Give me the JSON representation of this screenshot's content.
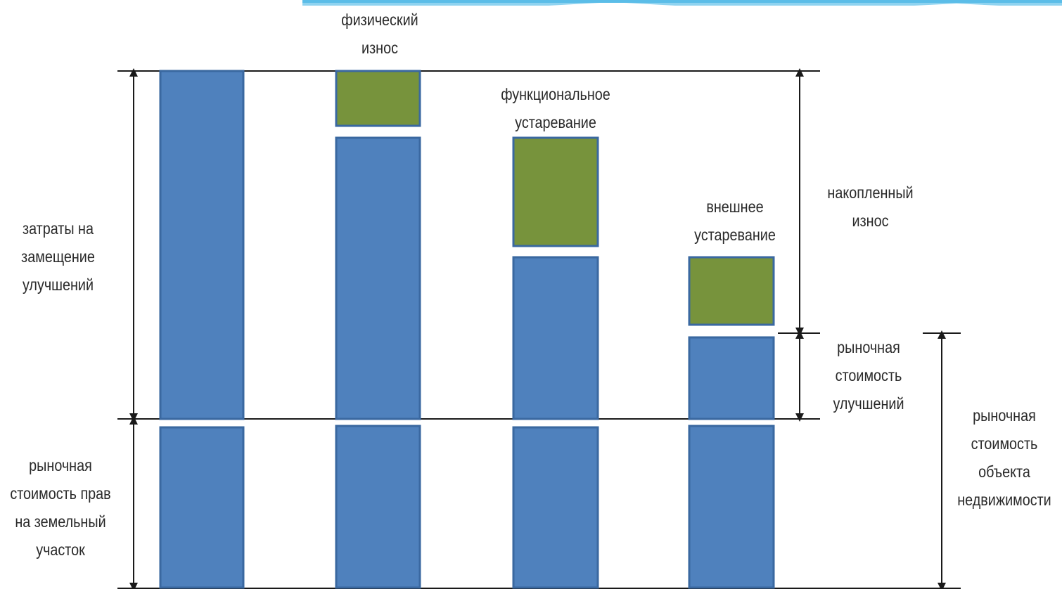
{
  "colors": {
    "bar": "#4f81bd",
    "bar_border": "#3a68a0",
    "depreciation": "#77933c",
    "line": "#1a1a1a",
    "top_band": "#8fd3f0"
  },
  "labels": {
    "replacement_cost": [
      "затраты на",
      "замещение",
      "улучшений"
    ],
    "land_value": [
      "рыночная",
      "стоимость прав",
      "на земельный",
      "участок"
    ],
    "physical_wear": [
      "физический",
      "износ"
    ],
    "functional_obsolescence": [
      "функциональное",
      "устаревание"
    ],
    "external_obsolescence": [
      "внешнее",
      "устаревание"
    ],
    "accumulated_wear": [
      "накопленный",
      "износ"
    ],
    "improvements_value": [
      "рыночная",
      "стоимость",
      "улучшений"
    ],
    "property_value": [
      "рыночная",
      "стоимость",
      "объекта",
      "недвижимости"
    ]
  }
}
